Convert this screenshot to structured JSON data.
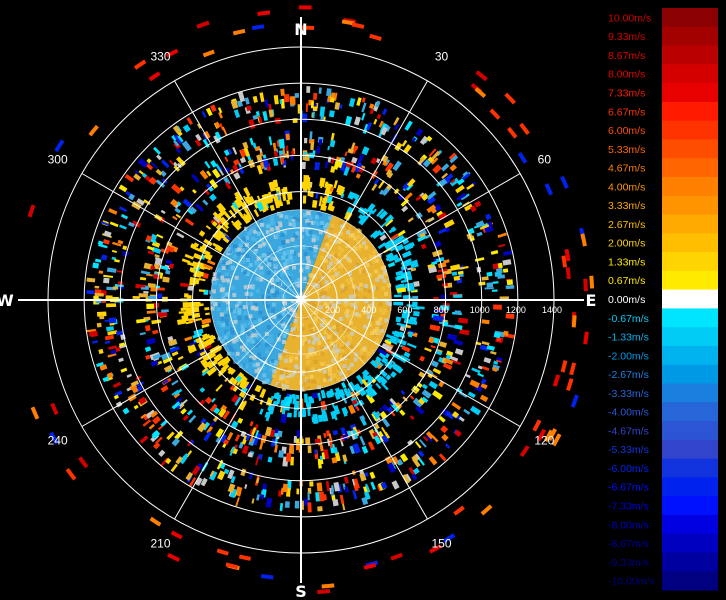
{
  "chart_data": {
    "type": "heatmap",
    "projection": "polar-ppi",
    "zero_direction": "north",
    "rotation": "clockwise",
    "radial_axis": {
      "ticks": [
        200,
        400,
        600,
        800,
        1000,
        1200,
        1400
      ],
      "tick_labels": [
        "200",
        "400",
        "600",
        "800",
        "1000",
        "1200",
        "1400"
      ],
      "ring_values": [
        200,
        400,
        600,
        800,
        1000,
        1200,
        1400
      ],
      "max": 1400
    },
    "cardinal_labels": {
      "north": "N",
      "east": "E",
      "south": "S",
      "west": "W"
    },
    "azimuth_labels": [
      {
        "deg": 30,
        "text": "30"
      },
      {
        "deg": 60,
        "text": "60"
      },
      {
        "deg": 120,
        "text": "120"
      },
      {
        "deg": 150,
        "text": "150"
      },
      {
        "deg": 210,
        "text": "210"
      },
      {
        "deg": 240,
        "text": "240"
      },
      {
        "deg": 300,
        "text": "300"
      },
      {
        "deg": 330,
        "text": "330"
      }
    ],
    "spokes_deg": [
      0,
      30,
      60,
      90,
      120,
      150,
      180,
      210,
      240,
      270,
      300,
      330
    ],
    "grid": true,
    "inner_grid": {
      "rings": [
        100,
        200,
        300,
        400,
        500
      ],
      "spokes_deg": [
        0,
        45,
        90,
        135,
        180,
        225,
        270,
        315
      ]
    },
    "value_field": {
      "description_units": "m/s",
      "core_radius": 500,
      "core_boundary_deg": [
        20,
        200
      ],
      "positive_color_index": 5,
      "negative_color_index": 20,
      "sparse_clutter_rings": [
        [
          510,
          650
        ],
        [
          720,
          900
        ],
        [
          980,
          1150
        ]
      ]
    },
    "colorbar": {
      "labels": [
        "10.00m/s",
        "9.33m/s",
        "8.67m/s",
        "8.00m/s",
        "7.33m/s",
        "6.67m/s",
        "6.00m/s",
        "5.33m/s",
        "4.67m/s",
        "4.00m/s",
        "3.33m/s",
        "2.67m/s",
        "2.00m/s",
        "1.33m/s",
        "0.67m/s",
        "0.00m/s",
        "-0.67m/s",
        "-1.33m/s",
        "-2.00m/s",
        "-2.67m/s",
        "-3.33m/s",
        "-4.00m/s",
        "-4.67m/s",
        "-5.33m/s",
        "-6.00m/s",
        "-6.67m/s",
        "-7.33m/s",
        "-8.00m/s",
        "-8.67m/s",
        "-9.33m/s",
        "-10.00m/s"
      ],
      "colors": [
        "#8b0000",
        "#a30000",
        "#bb0000",
        "#d40000",
        "#e80000",
        "#ff1a00",
        "#ff3300",
        "#ff4d00",
        "#ff6600",
        "#ff7f00",
        "#ff9400",
        "#ffaa00",
        "#ffbf00",
        "#ffd400",
        "#ffea00",
        "#ffffff",
        "#00e5ff",
        "#00ccf5",
        "#00b3ee",
        "#0099e6",
        "#1a80e0",
        "#2666d9",
        "#2b55d4",
        "#3344cc",
        "#1133dd",
        "#0022ee",
        "#0011ff",
        "#0000e0",
        "#0000c0",
        "#0000a0",
        "#000080"
      ],
      "label_colors": [
        "#d40000",
        "#d40000",
        "#e00000",
        "#e80000",
        "#ff1a00",
        "#ff3300",
        "#ff4d00",
        "#ff6600",
        "#ff7f00",
        "#ff9400",
        "#ffaa00",
        "#ffbf00",
        "#ffd400",
        "#ffea00",
        "#ffea00",
        "#ffffff",
        "#00ccf5",
        "#00b3ee",
        "#0099e6",
        "#1a80e0",
        "#2666d9",
        "#2b55d4",
        "#3344cc",
        "#1133dd",
        "#0022ee",
        "#0011ff",
        "#0000e0",
        "#0000c0",
        "#0000a0",
        "#000080",
        "#000080"
      ]
    }
  }
}
